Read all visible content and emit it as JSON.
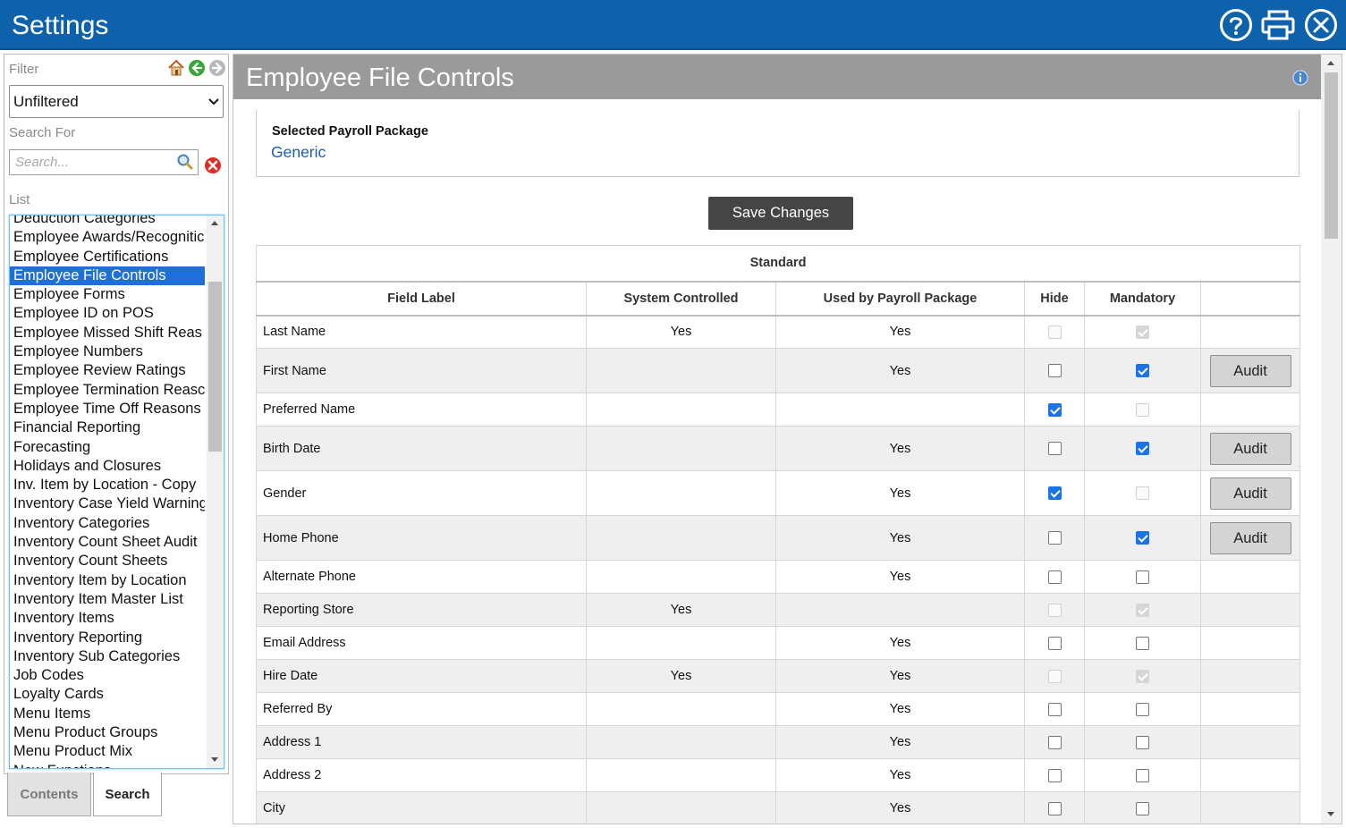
{
  "window": {
    "title": "Settings"
  },
  "left": {
    "filter_label": "Filter",
    "filter_value": "Unfiltered",
    "search_label": "Search For",
    "search_placeholder": "Search...",
    "list_label": "List",
    "list_items": [
      "Deduction Categories",
      "Employee Awards/Recognitic",
      "Employee Certifications",
      "Employee File Controls",
      "Employee Forms",
      "Employee ID on POS",
      "Employee Missed Shift Reas",
      "Employee Numbers",
      "Employee Review Ratings",
      "Employee Termination Reasc",
      "Employee Time Off Reasons",
      "Financial Reporting",
      "Forecasting",
      "Holidays and Closures",
      "Inv. Item by Location - Copy",
      "Inventory Case Yield Warning",
      "Inventory Categories",
      "Inventory Count Sheet Audit",
      "Inventory Count Sheets",
      "Inventory Item by Location",
      "Inventory Item Master List",
      "Inventory Items",
      "Inventory Reporting",
      "Inventory Sub Categories",
      "Job Codes",
      "Loyalty Cards",
      "Menu Items",
      "Menu Product Groups",
      "Menu Product Mix",
      "New Functions"
    ],
    "selected_index": 3,
    "tabs": {
      "contents": "Contents",
      "search": "Search"
    }
  },
  "main": {
    "title": "Employee File Controls",
    "package_label": "Selected Payroll Package",
    "package_value": "Generic",
    "save_label": "Save Changes",
    "group_header": "Standard",
    "columns": [
      "Field Label",
      "System Controlled",
      "Used by Payroll Package",
      "Hide",
      "Mandatory",
      ""
    ],
    "audit_label": "Audit",
    "rows": [
      {
        "label": "Last Name",
        "system": "Yes",
        "payroll": "Yes",
        "hide": false,
        "hide_disabled": true,
        "mandatory": true,
        "mand_disabled": true,
        "audit": false
      },
      {
        "label": "First Name",
        "system": "",
        "payroll": "Yes",
        "hide": false,
        "hide_disabled": false,
        "mandatory": true,
        "mand_disabled": false,
        "audit": true
      },
      {
        "label": "Preferred Name",
        "system": "",
        "payroll": "",
        "hide": true,
        "hide_disabled": false,
        "mandatory": false,
        "mand_disabled": true,
        "audit": false
      },
      {
        "label": "Birth Date",
        "system": "",
        "payroll": "Yes",
        "hide": false,
        "hide_disabled": false,
        "mandatory": true,
        "mand_disabled": false,
        "audit": true
      },
      {
        "label": "Gender",
        "system": "",
        "payroll": "Yes",
        "hide": true,
        "hide_disabled": false,
        "mandatory": false,
        "mand_disabled": true,
        "audit": true
      },
      {
        "label": "Home Phone",
        "system": "",
        "payroll": "Yes",
        "hide": false,
        "hide_disabled": false,
        "mandatory": true,
        "mand_disabled": false,
        "audit": true
      },
      {
        "label": "Alternate Phone",
        "system": "",
        "payroll": "Yes",
        "hide": false,
        "hide_disabled": false,
        "mandatory": false,
        "mand_disabled": false,
        "audit": false
      },
      {
        "label": "Reporting Store",
        "system": "Yes",
        "payroll": "",
        "hide": false,
        "hide_disabled": true,
        "mandatory": true,
        "mand_disabled": true,
        "audit": false
      },
      {
        "label": "Email Address",
        "system": "",
        "payroll": "Yes",
        "hide": false,
        "hide_disabled": false,
        "mandatory": false,
        "mand_disabled": false,
        "audit": false
      },
      {
        "label": "Hire Date",
        "system": "Yes",
        "payroll": "Yes",
        "hide": false,
        "hide_disabled": true,
        "mandatory": true,
        "mand_disabled": true,
        "audit": false
      },
      {
        "label": "Referred By",
        "system": "",
        "payroll": "Yes",
        "hide": false,
        "hide_disabled": false,
        "mandatory": false,
        "mand_disabled": false,
        "audit": false
      },
      {
        "label": "Address 1",
        "system": "",
        "payroll": "Yes",
        "hide": false,
        "hide_disabled": false,
        "mandatory": false,
        "mand_disabled": false,
        "audit": false
      },
      {
        "label": "Address 2",
        "system": "",
        "payroll": "Yes",
        "hide": false,
        "hide_disabled": false,
        "mandatory": false,
        "mand_disabled": false,
        "audit": false
      },
      {
        "label": "City",
        "system": "",
        "payroll": "Yes",
        "hide": false,
        "hide_disabled": false,
        "mandatory": false,
        "mand_disabled": false,
        "audit": false
      }
    ]
  },
  "colors": {
    "titlebar": "#0d62ab",
    "header_gray": "#9a9a9a",
    "selected_blue": "#1e6fd9",
    "link_blue": "#1a5db3",
    "checkbox_blue": "#1a73e8"
  },
  "icons": {
    "help": "help-icon",
    "print": "print-icon",
    "close": "close-icon",
    "home": "home-icon",
    "back": "back-arrow-icon",
    "forward": "forward-arrow-icon",
    "search": "search-icon",
    "clear": "clear-search-icon",
    "info": "info-icon"
  }
}
